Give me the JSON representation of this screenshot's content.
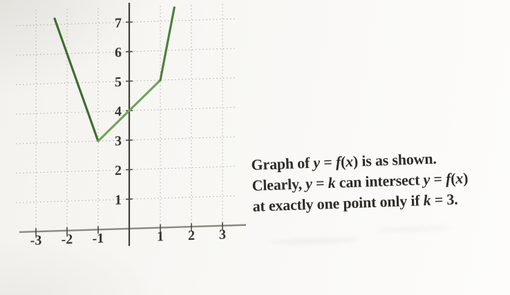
{
  "chart_data": {
    "type": "line",
    "title": "",
    "xlabel": "",
    "ylabel": "",
    "xticks": [
      -3,
      -2,
      -1,
      1,
      2,
      3
    ],
    "yticks": [
      1,
      2,
      3,
      4,
      5,
      6,
      7
    ],
    "xlim": [
      -3.4,
      3.6
    ],
    "ylim": [
      0,
      7.6
    ],
    "grid": "dotted",
    "legend_position": "none",
    "series": [
      {
        "name": "y = f(x)",
        "points": [
          [
            -2.4,
            7.2
          ],
          [
            -1,
            3
          ],
          [
            1,
            5
          ],
          [
            1.45,
            7.45
          ]
        ],
        "segment_colors": [
          "#3f6e30",
          "#6fa25c",
          "#4c7f3e"
        ]
      }
    ]
  },
  "caption": {
    "lines": [
      [
        {
          "text": "Graph of ",
          "italic": false
        },
        {
          "text": "y",
          "italic": true
        },
        {
          "text": " = ",
          "italic": false
        },
        {
          "text": "f",
          "italic": true
        },
        {
          "text": "(",
          "italic": false
        },
        {
          "text": "x",
          "italic": true
        },
        {
          "text": ") is as shown.",
          "italic": false
        }
      ],
      [
        {
          "text": "Clearly, ",
          "italic": false
        },
        {
          "text": "y",
          "italic": true
        },
        {
          "text": " = ",
          "italic": false
        },
        {
          "text": "k",
          "italic": true
        },
        {
          "text": " can intersect ",
          "italic": false
        },
        {
          "text": "y",
          "italic": true
        },
        {
          "text": " = ",
          "italic": false
        },
        {
          "text": "f",
          "italic": true
        },
        {
          "text": "(",
          "italic": false
        },
        {
          "text": "x",
          "italic": true
        },
        {
          "text": ")",
          "italic": false
        }
      ],
      [
        {
          "text": "at exactly one point only if ",
          "italic": false
        },
        {
          "text": "k",
          "italic": true
        },
        {
          "text": " = 3.",
          "italic": false
        }
      ]
    ]
  },
  "colors": {
    "curve_default": "#4e8742",
    "y_axis": "#403e39",
    "x_axis": "#8a887f",
    "axis_tick": "#4a4841",
    "grid": "#b5b2aa",
    "tick_label": "#36342f",
    "caption_text": "#2e2d28",
    "paper": "#f8f7f4"
  }
}
